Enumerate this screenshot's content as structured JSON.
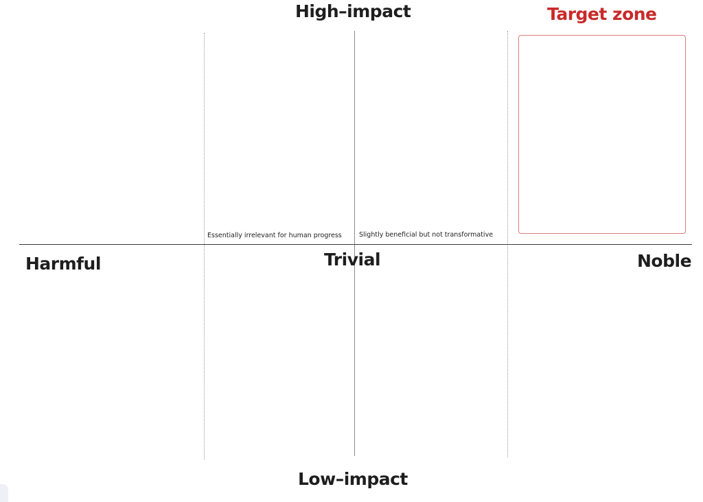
{
  "labels": {
    "top": "High–impact",
    "bottom": "Low–impact",
    "left": "Harmful",
    "center": "Trivial",
    "right": "Noble",
    "target_zone": "Target zone"
  },
  "notes": {
    "irrelevant": "Essentially irrelevant for human progress",
    "beneficial": "Slightly beneficial but not transformative"
  },
  "colors": {
    "text": "#1e1e1e",
    "target": "#c92a2a",
    "target_border": "#e07a7a",
    "axis": "#3a3a3a"
  }
}
